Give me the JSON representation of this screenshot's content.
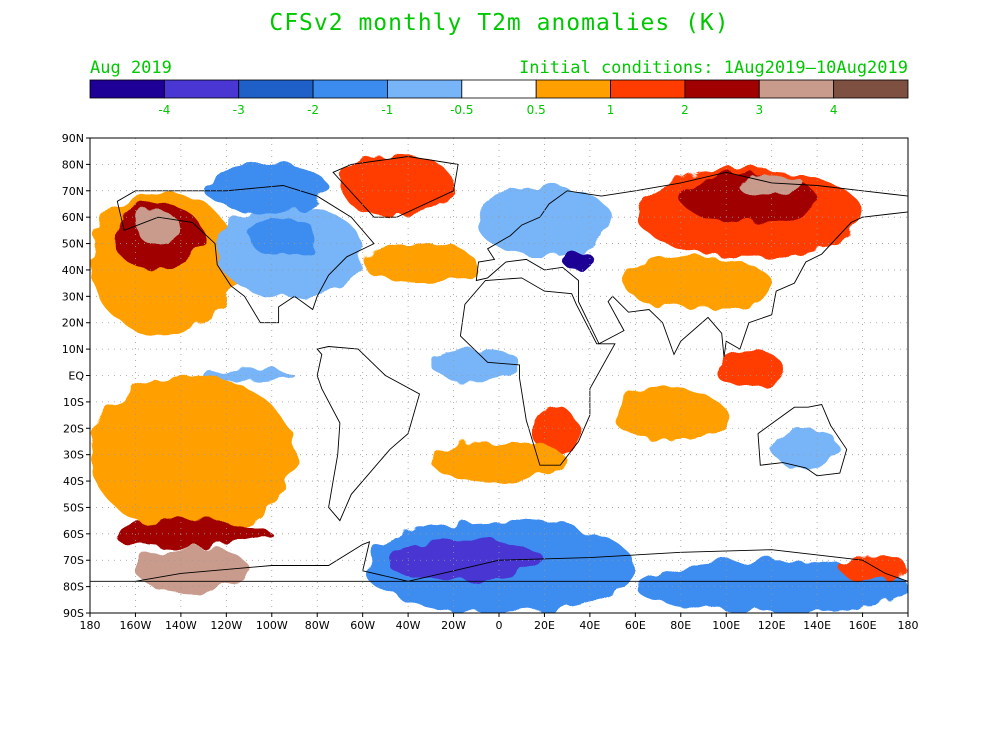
{
  "title": "CFSv2 monthly T2m anomalies (K)",
  "valid_label": "Aug 2019",
  "init_label": "Initial conditions: 1Aug2019–10Aug2019",
  "text_color": "#00c800",
  "colorbar": {
    "colors": [
      "#1e0096",
      "#4a36d2",
      "#1f5fc8",
      "#3c8cf0",
      "#78b4f8",
      "#ffffff",
      "#ffa000",
      "#ff3c00",
      "#a00000",
      "#c89b8c",
      "#7d5041"
    ],
    "labels": [
      "-4",
      "-3",
      "-2",
      "-1",
      "-0.5",
      "0.5",
      "1",
      "2",
      "3",
      "4"
    ]
  },
  "map": {
    "lon_labels": [
      "180",
      "160W",
      "140W",
      "120W",
      "100W",
      "80W",
      "60W",
      "40W",
      "20W",
      "0",
      "20E",
      "40E",
      "60E",
      "80E",
      "100E",
      "120E",
      "140E",
      "160E",
      "180"
    ],
    "lat_labels": [
      "90N",
      "80N",
      "70N",
      "60N",
      "50N",
      "40N",
      "30N",
      "20N",
      "10N",
      "EQ",
      "10S",
      "20S",
      "30S",
      "40S",
      "50S",
      "60S",
      "70S",
      "80S",
      "90S"
    ],
    "anomaly_regions": [
      {
        "name": "ne-pacific-warm",
        "lon": [
          -180,
          -115
        ],
        "lat": [
          15,
          70
        ],
        "level": 0.8
      },
      {
        "name": "gulf-of-alaska-warm",
        "lon": [
          -170,
          -130
        ],
        "lat": [
          40,
          65
        ],
        "level": 2.2
      },
      {
        "name": "alaska-very-warm",
        "lon": [
          -160,
          -140
        ],
        "lat": [
          50,
          62
        ],
        "level": 3.2
      },
      {
        "name": "north-america-cool",
        "lon": [
          -125,
          -60
        ],
        "lat": [
          30,
          65
        ],
        "level": -0.8
      },
      {
        "name": "hudson-cool",
        "lon": [
          -110,
          -80
        ],
        "lat": [
          45,
          60
        ],
        "level": -1.2
      },
      {
        "name": "greenland-warm",
        "lon": [
          -70,
          -20
        ],
        "lat": [
          60,
          84
        ],
        "level": 1.5
      },
      {
        "name": "north-atlantic-warm",
        "lon": [
          -60,
          -10
        ],
        "lat": [
          35,
          50
        ],
        "level": 0.8
      },
      {
        "name": "canada-arctic-cool",
        "lon": [
          -130,
          -75
        ],
        "lat": [
          62,
          80
        ],
        "level": -1.0
      },
      {
        "name": "europe-cool",
        "lon": [
          -10,
          50
        ],
        "lat": [
          45,
          72
        ],
        "level": -0.8
      },
      {
        "name": "black-sea-cold",
        "lon": [
          28,
          42
        ],
        "lat": [
          40,
          47
        ],
        "level": -4.2
      },
      {
        "name": "siberia-warm",
        "lon": [
          60,
          160
        ],
        "lat": [
          45,
          78
        ],
        "level": 1.6
      },
      {
        "name": "siberia-hot",
        "lon": [
          80,
          140
        ],
        "lat": [
          58,
          76
        ],
        "level": 2.5
      },
      {
        "name": "siberia-core",
        "lon": [
          105,
          135
        ],
        "lat": [
          68,
          76
        ],
        "level": 3.3
      },
      {
        "name": "central-asia-warm",
        "lon": [
          55,
          120
        ],
        "lat": [
          25,
          45
        ],
        "level": 0.7
      },
      {
        "name": "indian-ocean-warm",
        "lon": [
          50,
          100
        ],
        "lat": [
          -25,
          -5
        ],
        "level": 0.7
      },
      {
        "name": "indonesia-warm",
        "lon": [
          95,
          125
        ],
        "lat": [
          -5,
          10
        ],
        "level": 1.4
      },
      {
        "name": "east-pacific-warm",
        "lon": [
          -180,
          -90
        ],
        "lat": [
          -60,
          0
        ],
        "level": 0.8
      },
      {
        "name": "south-pacific-warm",
        "lon": [
          -170,
          -100
        ],
        "lat": [
          -65,
          -55
        ],
        "level": 2.2
      },
      {
        "name": "amundsen-hot",
        "lon": [
          -160,
          -110
        ],
        "lat": [
          -82,
          -65
        ],
        "level": 3.2
      },
      {
        "name": "southern-africa-warm",
        "lon": [
          15,
          35
        ],
        "lat": [
          -30,
          -12
        ],
        "level": 1.6
      },
      {
        "name": "south-atlantic-warm",
        "lon": [
          -30,
          30
        ],
        "lat": [
          -40,
          -25
        ],
        "level": 0.7
      },
      {
        "name": "southern-ocean-cool",
        "lon": [
          -60,
          60
        ],
        "lat": [
          -90,
          -55
        ],
        "level": -1.5
      },
      {
        "name": "weddell-cold",
        "lon": [
          -50,
          20
        ],
        "lat": [
          -78,
          -62
        ],
        "level": -3.2
      },
      {
        "name": "australia-cool",
        "lon": [
          120,
          150
        ],
        "lat": [
          -35,
          -20
        ],
        "level": -0.7
      },
      {
        "name": "east-antarctic-cool",
        "lon": [
          60,
          180
        ],
        "lat": [
          -90,
          -70
        ],
        "level": -1.2
      },
      {
        "name": "ross-sea-warm",
        "lon": [
          150,
          180
        ],
        "lat": [
          -78,
          -68
        ],
        "level": 1.4
      },
      {
        "name": "tropical-pacific-cool",
        "lon": [
          -130,
          -90
        ],
        "lat": [
          -2,
          2
        ],
        "level": -0.7
      },
      {
        "name": "tropical-atlantic-cool",
        "lon": [
          -30,
          10
        ],
        "lat": [
          -2,
          10
        ],
        "level": -0.7
      }
    ]
  }
}
